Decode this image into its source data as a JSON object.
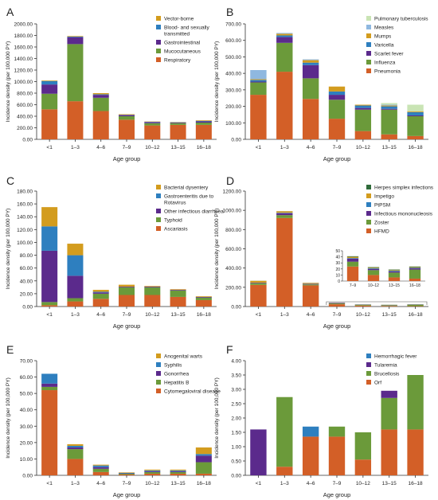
{
  "figure": {
    "panels": [
      "A",
      "B",
      "C",
      "D",
      "E",
      "F"
    ]
  },
  "colors": {
    "orange": "#d35f27",
    "green": "#6b9a3a",
    "purple": "#5b2a8c",
    "blue": "#2e7fbf",
    "gold": "#d39c1e",
    "lightblue": "#8fb8e0",
    "paleblue": "#cfe0f3",
    "palegreen": "#c9e4b4",
    "darkgreen": "#2f6b3a"
  },
  "chart_data": [
    {
      "panel": "A",
      "type": "bar",
      "stacked": true,
      "xlabel": "Age group",
      "ylabel": "Incidence density (per 100,000 PY)",
      "ylim": [
        0,
        2000
      ],
      "yticks": [
        "0.00",
        "200.00",
        "400.00",
        "600.00",
        "800.00",
        "1000.00",
        "1200.00",
        "1400.00",
        "1600.00",
        "1800.00",
        "2000.00"
      ],
      "categories": [
        "<1",
        "1–3",
        "4–6",
        "7–9",
        "10–12",
        "13–15",
        "16–18"
      ],
      "legend": [
        "Vector-borne",
        "Blood- and sexually transmitted",
        "Gastrointestinal",
        "Mucocutaneous",
        "Respiratory"
      ],
      "series": [
        {
          "name": "Respiratory",
          "color": "#d35f27",
          "values": [
            520,
            660,
            490,
            340,
            240,
            250,
            250
          ]
        },
        {
          "name": "Mucocutaneous",
          "color": "#6b9a3a",
          "values": [
            270,
            990,
            230,
            60,
            40,
            30,
            40
          ]
        },
        {
          "name": "Gastrointestinal",
          "color": "#5b2a8c",
          "values": [
            160,
            120,
            50,
            20,
            20,
            10,
            20
          ]
        },
        {
          "name": "Blood- and sexually transmitted",
          "color": "#2e7fbf",
          "values": [
            60,
            10,
            10,
            5,
            5,
            5,
            10
          ]
        },
        {
          "name": "Vector-borne",
          "color": "#d39c1e",
          "values": [
            10,
            10,
            20,
            10,
            5,
            5,
            10
          ]
        }
      ]
    },
    {
      "panel": "B",
      "type": "bar",
      "stacked": true,
      "xlabel": "Age group",
      "ylabel": "Incidence density (per 100,000 PY)",
      "ylim": [
        0,
        700
      ],
      "yticks": [
        "0.00",
        "100.00",
        "200.00",
        "300.00",
        "400.00",
        "500.00",
        "600.00",
        "700.00"
      ],
      "categories": [
        "<1",
        "1–3",
        "4–6",
        "7–9",
        "10–12",
        "13–15",
        "16–18"
      ],
      "legend": [
        "Pulmonary tuberculosis",
        "Measles",
        "Mumps",
        "Varicella",
        "Scarlet fever",
        "Influenza",
        "Pneumonia"
      ],
      "series": [
        {
          "name": "Pneumonia",
          "color": "#d35f27",
          "values": [
            270,
            410,
            245,
            125,
            50,
            30,
            20
          ]
        },
        {
          "name": "Influenza",
          "color": "#6b9a3a",
          "values": [
            75,
            175,
            125,
            115,
            130,
            150,
            120
          ]
        },
        {
          "name": "Scarlet fever",
          "color": "#5b2a8c",
          "values": [
            5,
            35,
            80,
            30,
            10,
            5,
            5
          ]
        },
        {
          "name": "Varicella",
          "color": "#2e7fbf",
          "values": [
            10,
            10,
            15,
            20,
            15,
            15,
            20
          ]
        },
        {
          "name": "Mumps",
          "color": "#d39c1e",
          "values": [
            5,
            10,
            15,
            30,
            5,
            5,
            5
          ]
        },
        {
          "name": "Measles",
          "color": "#8fb8e0",
          "values": [
            55,
            5,
            5,
            0,
            0,
            5,
            0
          ]
        },
        {
          "name": "Pulmonary tuberculosis",
          "color": "#c9e4b4",
          "values": [
            0,
            0,
            0,
            0,
            0,
            10,
            40
          ]
        }
      ]
    },
    {
      "panel": "C",
      "type": "bar",
      "stacked": true,
      "xlabel": "Age group",
      "ylabel": "Incidence density (per 100,000 PY)",
      "ylim": [
        0,
        180
      ],
      "yticks": [
        "0.00",
        "20.00",
        "40.00",
        "60.00",
        "80.00",
        "100.00",
        "120.00",
        "140.00",
        "160.00",
        "180.00"
      ],
      "categories": [
        "<1",
        "1–3",
        "4–6",
        "7–9",
        "10–12",
        "13–15",
        "16–18"
      ],
      "legend": [
        "Bacterial dysentery",
        "Gastroenteritis due to Rotavirus",
        "Other infectious diarrhoea",
        "Typhoid",
        "Ascariasis"
      ],
      "series": [
        {
          "name": "Ascariasis",
          "color": "#d35f27",
          "values": [
            2,
            8,
            12,
            18,
            18,
            15,
            10
          ]
        },
        {
          "name": "Typhoid",
          "color": "#6b9a3a",
          "values": [
            5,
            5,
            8,
            12,
            12,
            10,
            4
          ]
        },
        {
          "name": "Other infectious diarrhoea",
          "color": "#5b2a8c",
          "values": [
            80,
            35,
            2,
            1,
            1,
            1,
            1
          ]
        },
        {
          "name": "Gastroenteritis due to Rotavirus",
          "color": "#2e7fbf",
          "values": [
            38,
            32,
            1,
            0,
            0,
            0,
            0
          ]
        },
        {
          "name": "Bacterial dysentery",
          "color": "#d39c1e",
          "values": [
            30,
            18,
            3,
            3,
            1,
            1,
            1
          ]
        }
      ]
    },
    {
      "panel": "D",
      "type": "bar",
      "stacked": true,
      "xlabel": "Age group",
      "ylabel": "Incidence density (per 100,000 PY)",
      "ylim": [
        0,
        1200
      ],
      "yticks": [
        "0.00",
        "200.00",
        "400.00",
        "600.00",
        "800.00",
        "1000.00",
        "1200.00"
      ],
      "categories": [
        "<1",
        "1–3",
        "4–6",
        "7–9",
        "10–12",
        "13–15",
        "16–18"
      ],
      "legend": [
        "Herpes simplex infections",
        "Impetigo",
        "PtPSM",
        "Infectious mononucleosis",
        "Zoster",
        "HFMD"
      ],
      "series": [
        {
          "name": "HFMD",
          "color": "#d35f27",
          "values": [
            225,
            920,
            220,
            24,
            10,
            6,
            4
          ]
        },
        {
          "name": "Zoster",
          "color": "#6b9a3a",
          "values": [
            15,
            30,
            10,
            8,
            8,
            8,
            15
          ]
        },
        {
          "name": "Infectious mononucleosis",
          "color": "#5b2a8c",
          "values": [
            5,
            20,
            5,
            5,
            2,
            2,
            2
          ]
        },
        {
          "name": "PtPSM",
          "color": "#2e7fbf",
          "values": [
            2,
            5,
            2,
            1,
            1,
            1,
            1
          ]
        },
        {
          "name": "Impetigo",
          "color": "#d39c1e",
          "values": [
            20,
            15,
            8,
            2,
            1,
            1,
            1
          ]
        },
        {
          "name": "Herpes simplex infections",
          "color": "#2f6b3a",
          "values": [
            1,
            1,
            1,
            1,
            1,
            1,
            1
          ]
        }
      ],
      "inset": {
        "categories": [
          "7–9",
          "10–12",
          "13–15",
          "16–18"
        ],
        "ylim": [
          0,
          50
        ],
        "yticks": [
          "0",
          "10",
          "20",
          "30",
          "40",
          "50"
        ]
      }
    },
    {
      "panel": "E",
      "type": "bar",
      "stacked": true,
      "xlabel": "Age group",
      "ylabel": "Incidence density (per 100,000 PY)",
      "ylim": [
        0,
        70
      ],
      "yticks": [
        "0.00",
        "10.00",
        "20.00",
        "30.00",
        "40.00",
        "50.00",
        "60.00",
        "70.00"
      ],
      "categories": [
        "<1",
        "1–3",
        "4–6",
        "7–9",
        "10–12",
        "13–15",
        "16–18"
      ],
      "legend": [
        "Anogenital warts",
        "Syphilis",
        "Gonorrhea",
        "Hepatitis B",
        "Cytomegaloviral disease"
      ],
      "series": [
        {
          "name": "Cytomegaloviral disease",
          "color": "#d35f27",
          "values": [
            52,
            10,
            2,
            0.5,
            1,
            1,
            1
          ]
        },
        {
          "name": "Hepatitis B",
          "color": "#6b9a3a",
          "values": [
            2,
            6,
            2,
            0.5,
            1,
            1,
            7
          ]
        },
        {
          "name": "Gonorrhea",
          "color": "#5b2a8c",
          "values": [
            2,
            1,
            1,
            0.2,
            0.5,
            0.5,
            4
          ]
        },
        {
          "name": "Syphilis",
          "color": "#2e7fbf",
          "values": [
            6,
            1,
            1,
            0.3,
            0.5,
            0.5,
            1
          ]
        },
        {
          "name": "Anogenital warts",
          "color": "#d39c1e",
          "values": [
            0,
            1,
            0.5,
            0.3,
            0.5,
            0.5,
            4
          ]
        }
      ]
    },
    {
      "panel": "F",
      "type": "bar",
      "stacked": true,
      "xlabel": "Age group",
      "ylabel": "Incidence density (per 100,000 PY)",
      "ylim": [
        0,
        4
      ],
      "yticks": [
        "0.00",
        "0.50",
        "1.00",
        "1.50",
        "2.00",
        "2.50",
        "3.00",
        "3.50",
        "4.00"
      ],
      "categories": [
        "<1",
        "1–3",
        "4–6",
        "7–9",
        "10–12",
        "13–15",
        "16–18"
      ],
      "legend": [
        "Hemorrhagic fever",
        "Tularemia",
        "Brucellosis",
        "Orf"
      ],
      "series": [
        {
          "name": "Orf",
          "color": "#d35f27",
          "values": [
            0,
            0.3,
            1.35,
            1.35,
            0.55,
            1.6,
            1.6
          ]
        },
        {
          "name": "Brucellosis",
          "color": "#6b9a3a",
          "values": [
            0,
            2.43,
            0,
            0.35,
            0.95,
            1.1,
            1.9
          ]
        },
        {
          "name": "Tularemia",
          "color": "#5b2a8c",
          "values": [
            1.6,
            0,
            0,
            0,
            0,
            0.25,
            0
          ]
        },
        {
          "name": "Hemorrhagic fever",
          "color": "#2e7fbf",
          "values": [
            0,
            0,
            0.35,
            0,
            0,
            0,
            0
          ]
        }
      ]
    }
  ]
}
